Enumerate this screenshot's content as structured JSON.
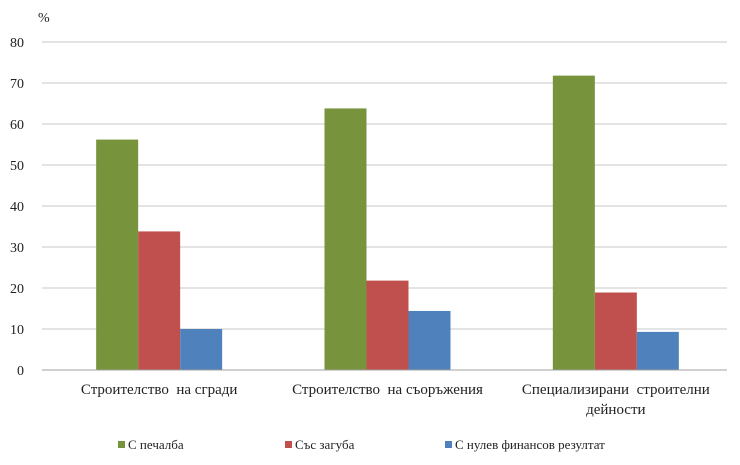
{
  "chart_data": {
    "type": "bar",
    "title": "",
    "xlabel": "",
    "ylabel": "%",
    "ylim": [
      0,
      80
    ],
    "yticks": [
      0,
      10,
      20,
      30,
      40,
      50,
      60,
      70,
      80
    ],
    "grid": true,
    "legend_position": "bottom",
    "categories": [
      [
        "Строителство  на сгради"
      ],
      [
        "Строителство  на съоръжения"
      ],
      [
        "Специализирани  строителни",
        "дейности"
      ]
    ],
    "series": [
      {
        "name": "С печалба",
        "color": "#77933c",
        "values": [
          56.2,
          63.8,
          71.8
        ]
      },
      {
        "name": "Със загуба",
        "color": "#c0504d",
        "values": [
          33.8,
          21.8,
          18.9
        ]
      },
      {
        "name": "С нулев финансов резултат",
        "color": "#4f81bd",
        "values": [
          10.0,
          14.4,
          9.3
        ]
      }
    ]
  }
}
